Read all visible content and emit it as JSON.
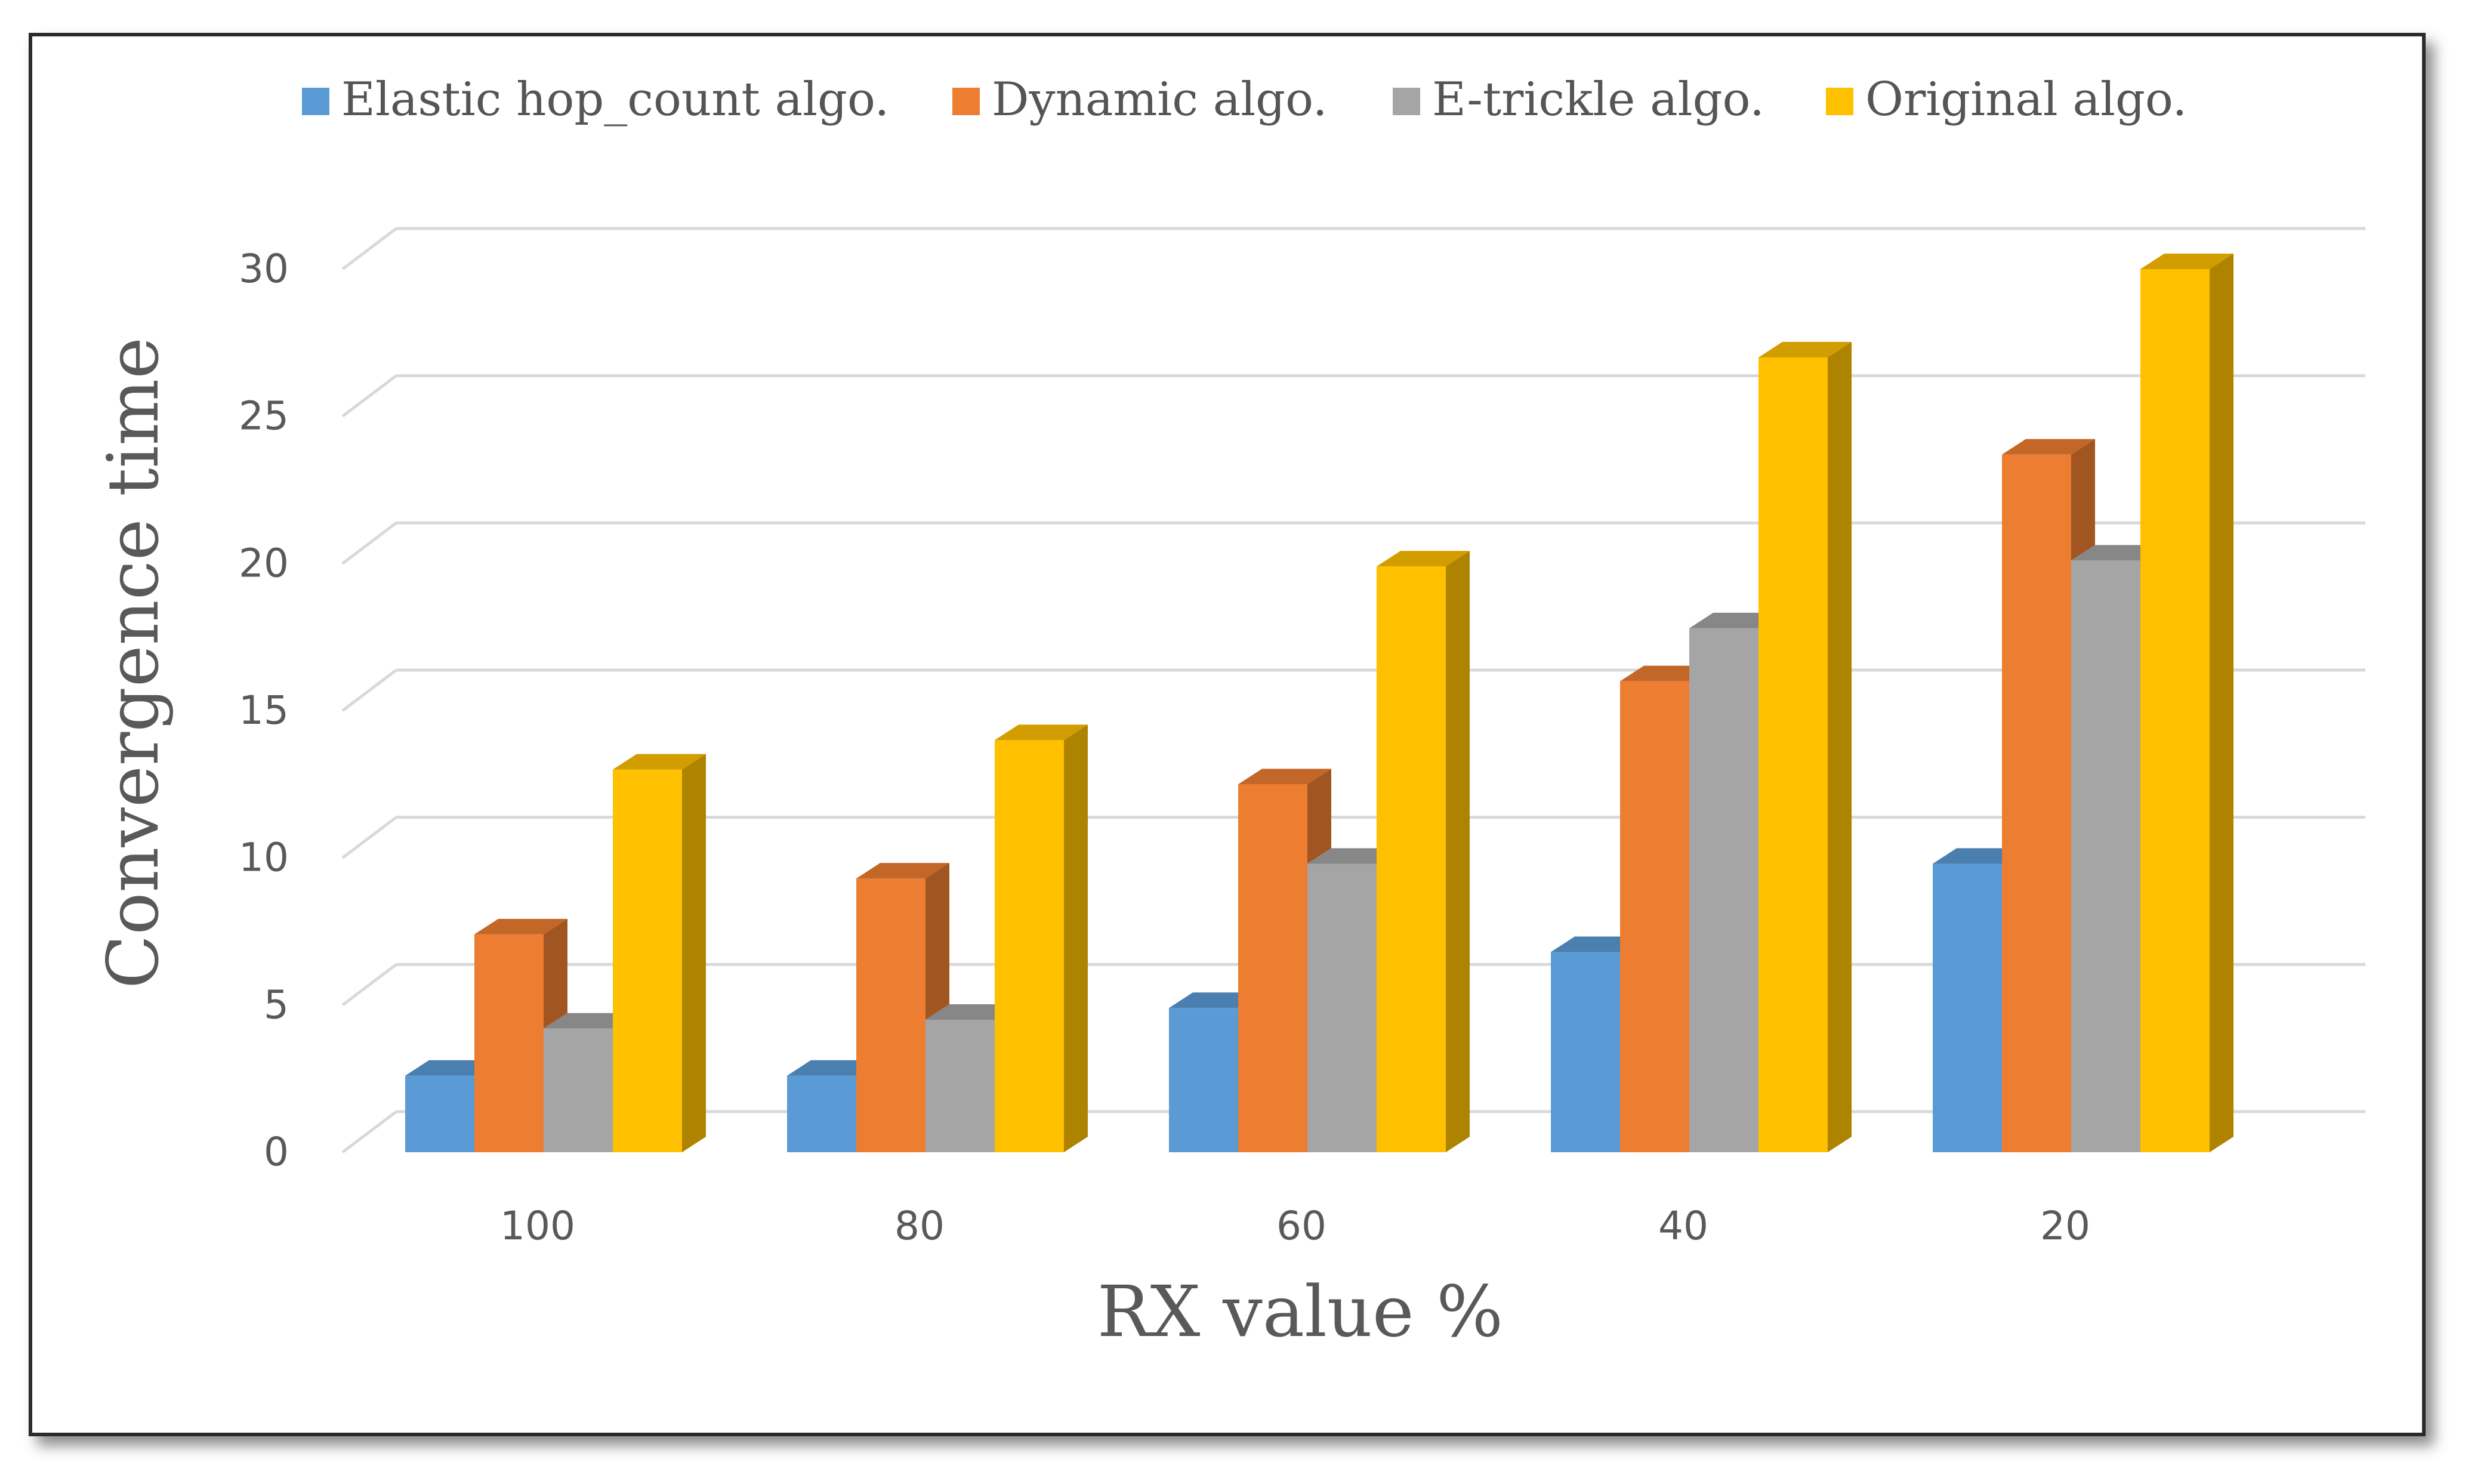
{
  "chart_data": {
    "type": "bar",
    "title": "",
    "xlabel": "RX value %",
    "ylabel": "Convergence time",
    "categories": [
      "100",
      "80",
      "60",
      "40",
      "20"
    ],
    "ylim": [
      0,
      30
    ],
    "yticks": [
      "0",
      "5",
      "10",
      "15",
      "20",
      "25",
      "30"
    ],
    "grid": true,
    "legend_position": "top",
    "series": [
      {
        "name": "Elastic hop_count  algo.",
        "color": "#5B9BD5",
        "values": [
          2.6,
          2.6,
          4.9,
          6.8,
          9.8
        ]
      },
      {
        "name": "Dynamic algo.",
        "color": "#ED7D31",
        "values": [
          7.4,
          9.3,
          12.5,
          16.0,
          23.7
        ]
      },
      {
        "name": "E-trickle algo.",
        "color": "#A5A5A5",
        "values": [
          4.2,
          4.5,
          9.8,
          17.8,
          20.1
        ]
      },
      {
        "name": "Original algo.",
        "color": "#FFC000",
        "values": [
          13.0,
          14.0,
          19.9,
          27.0,
          30.0
        ]
      }
    ]
  }
}
